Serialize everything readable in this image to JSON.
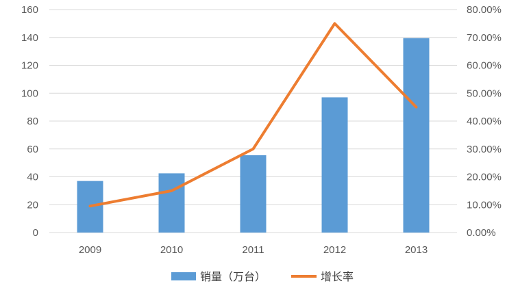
{
  "chart_data": {
    "type": "bar",
    "categories": [
      "2009",
      "2010",
      "2011",
      "2012",
      "2013"
    ],
    "series": [
      {
        "name": "销量（万台）",
        "type": "bar",
        "axis": "left",
        "color": "#5b9bd5",
        "values": [
          37,
          42.5,
          55.5,
          97,
          139.5
        ]
      },
      {
        "name": "增长率",
        "type": "line",
        "axis": "right",
        "color": "#ed7d31",
        "values": [
          0.095,
          0.15,
          0.3,
          0.75,
          0.45
        ]
      }
    ],
    "y_left": {
      "ylim": [
        0,
        160
      ],
      "ticks": [
        0,
        20,
        40,
        60,
        80,
        100,
        120,
        140,
        160
      ]
    },
    "y_right": {
      "ylim": [
        0,
        0.8
      ],
      "ticks": [
        0,
        0.1,
        0.2,
        0.3,
        0.4,
        0.5,
        0.6,
        0.7,
        0.8
      ],
      "tick_labels": [
        "0.00%",
        "10.00%",
        "20.00%",
        "30.00%",
        "40.00%",
        "50.00%",
        "60.00%",
        "70.00%",
        "80.00%"
      ]
    },
    "grid": true,
    "legend_position": "bottom",
    "title": "",
    "xlabel": "",
    "ylabel": ""
  }
}
